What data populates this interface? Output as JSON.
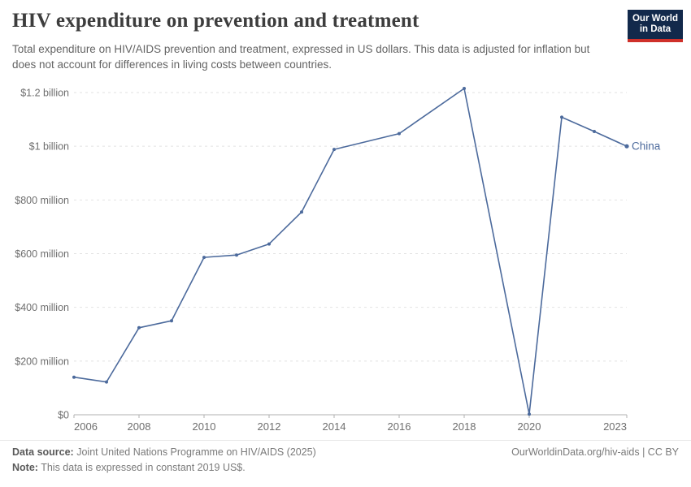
{
  "header": {
    "title": "HIV expenditure on prevention and treatment",
    "subtitle": "Total expenditure on HIV/AIDS prevention and treatment, expressed in US dollars. This data is adjusted for inflation but does not account for differences in living costs between countries.",
    "logo": {
      "line1": "Our World",
      "line2": "in Data"
    }
  },
  "footer": {
    "data_source_label": "Data source:",
    "data_source": "Joint United Nations Programme on HIV/AIDS (2025)",
    "note_label": "Note:",
    "note": "This data is expressed in constant 2019 US$.",
    "rights": "OurWorldinData.org/hiv-aids | CC BY"
  },
  "colors": {
    "line": "#4C6A9C",
    "entity_label": "#4C6A9C",
    "logo_bg": "#12294B",
    "logo_red": "#CF302A",
    "grid": "#E2E2E2",
    "axis": "#B0B0B0",
    "tick_text": "#6E6E6E"
  },
  "chart_data": {
    "type": "line",
    "title": "HIV expenditure on prevention and treatment",
    "entity": "China",
    "unit": "constant 2019 US$",
    "x": [
      2006,
      2007,
      2008,
      2009,
      2010,
      2011,
      2012,
      2013,
      2014,
      2016,
      2018,
      2020,
      2021,
      2022,
      2023
    ],
    "series": [
      {
        "name": "China",
        "values_million_usd": [
          140,
          122,
          324,
          350,
          586,
          595,
          636,
          755,
          988,
          1047,
          1215,
          2,
          1108,
          1055,
          1000
        ]
      }
    ],
    "x_ticks": [
      2006,
      2008,
      2010,
      2012,
      2014,
      2016,
      2018,
      2020,
      2023
    ],
    "y_ticks": [
      {
        "value": 0,
        "label": "$0"
      },
      {
        "value": 200,
        "label": "$200 million"
      },
      {
        "value": 400,
        "label": "$400 million"
      },
      {
        "value": 600,
        "label": "$600 million"
      },
      {
        "value": 800,
        "label": "$800 million"
      },
      {
        "value": 1000,
        "label": "$1 billion"
      },
      {
        "value": 1200,
        "label": "$1.2 billion"
      }
    ],
    "xlim": [
      2006,
      2023
    ],
    "ylim_million_usd": [
      0,
      1200
    ],
    "grid": "horizontal-dashed",
    "legend": "end-of-line-label"
  }
}
